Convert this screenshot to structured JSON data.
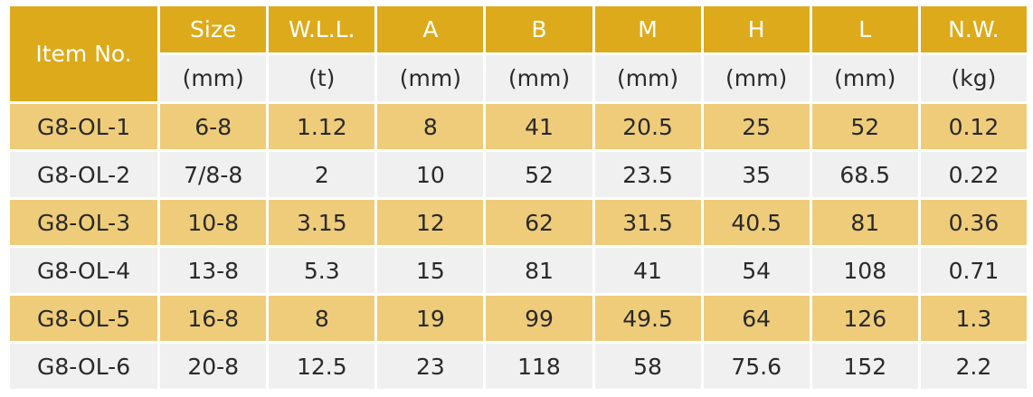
{
  "table": {
    "item_header": "Item No.",
    "columns": [
      {
        "name": "Size",
        "unit": "(mm)"
      },
      {
        "name": "W.L.L.",
        "unit": "(t)"
      },
      {
        "name": "A",
        "unit": "(mm)"
      },
      {
        "name": "B",
        "unit": "(mm)"
      },
      {
        "name": "M",
        "unit": "(mm)"
      },
      {
        "name": "H",
        "unit": "(mm)"
      },
      {
        "name": "L",
        "unit": "(mm)"
      },
      {
        "name": "N.W.",
        "unit": "(kg)"
      }
    ],
    "rows": [
      [
        "G8-OL-1",
        "6-8",
        "1.12",
        "8",
        "41",
        "20.5",
        "25",
        "52",
        "0.12"
      ],
      [
        "G8-OL-2",
        "7/8-8",
        "2",
        "10",
        "52",
        "23.5",
        "35",
        "68.5",
        "0.22"
      ],
      [
        "G8-OL-3",
        "10-8",
        "3.15",
        "12",
        "62",
        "31.5",
        "40.5",
        "81",
        "0.36"
      ],
      [
        "G8-OL-4",
        "13-8",
        "5.3",
        "15",
        "81",
        "41",
        "54",
        "108",
        "0.71"
      ],
      [
        "G8-OL-5",
        "16-8",
        "8",
        "19",
        "99",
        "49.5",
        "64",
        "126",
        "1.3"
      ],
      [
        "G8-OL-6",
        "20-8",
        "12.5",
        "23",
        "118",
        "58",
        "75.6",
        "152",
        "2.2"
      ]
    ]
  },
  "colors": {
    "header_gold": "#ddaa1b",
    "row_highlight": "#efcc7a",
    "row_plain": "#f0f0f0"
  }
}
